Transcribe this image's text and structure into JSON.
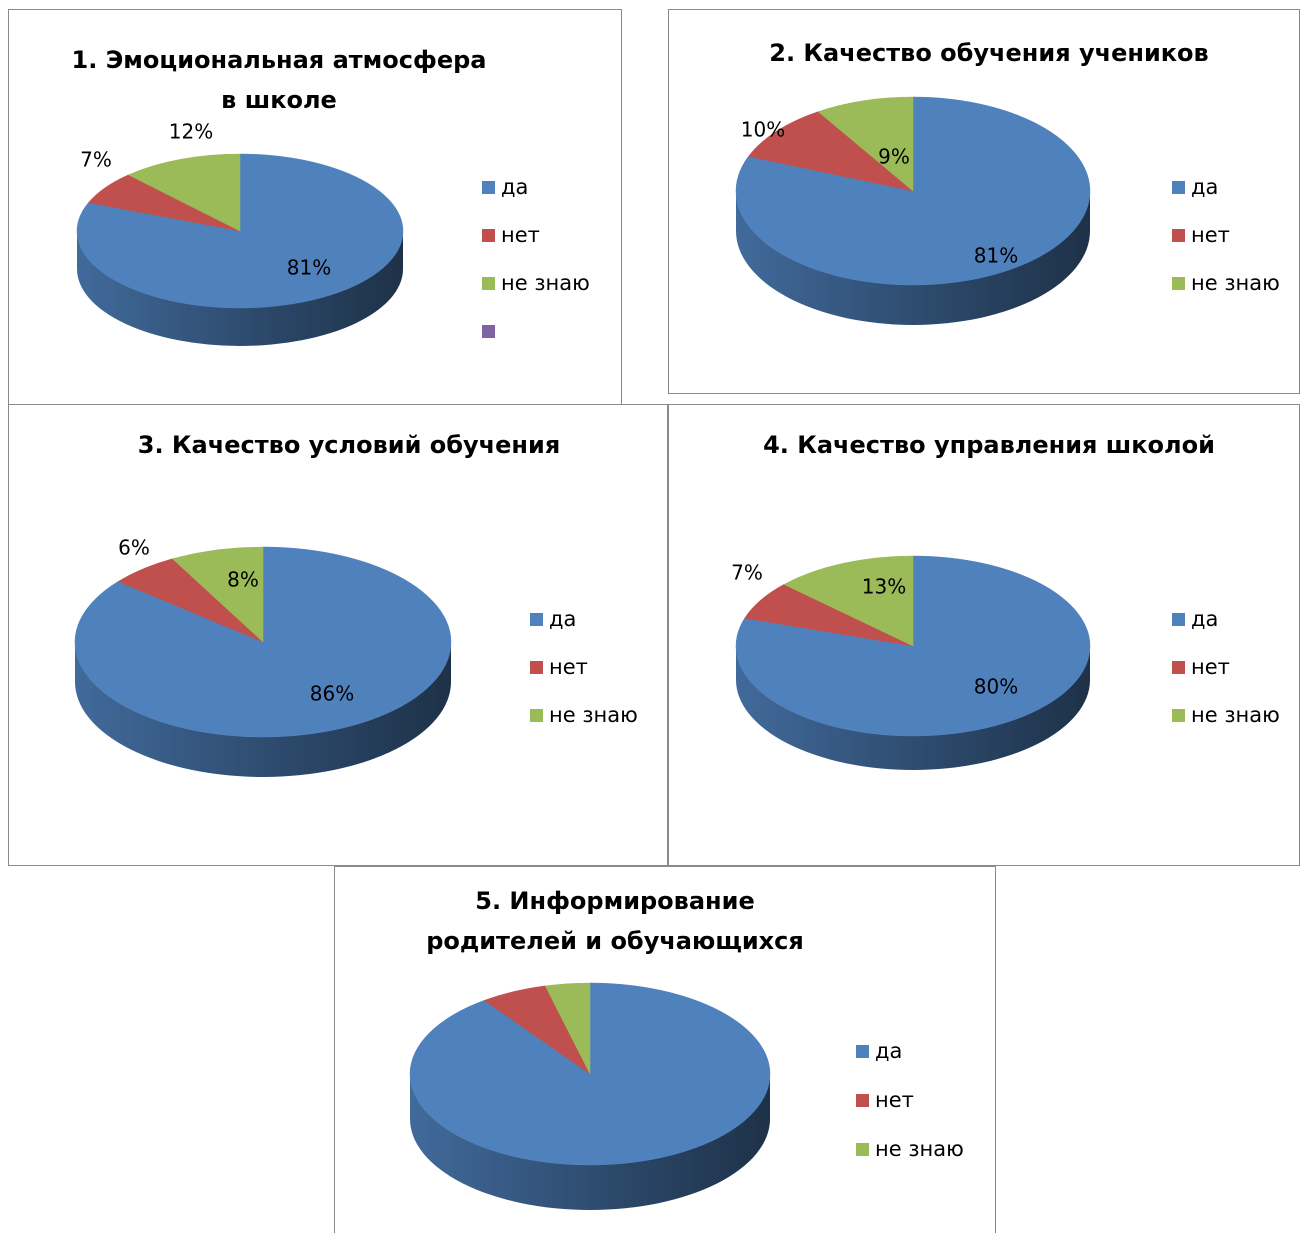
{
  "colors": {
    "yes": "#4F81BD",
    "no": "#C0504D",
    "dontknow": "#9BBB59",
    "extra": "#8064A2"
  },
  "chart_data": [
    {
      "type": "pie",
      "title": "1. Эмоциональная атмосфера в школе",
      "categories": [
        "да",
        "нет",
        "не знаю"
      ],
      "values": [
        81,
        7,
        12
      ],
      "data_labels": [
        "81%",
        "7%",
        "12%"
      ],
      "legend": [
        "да",
        "нет",
        "не знаю",
        ""
      ],
      "legend_position": "right"
    },
    {
      "type": "pie",
      "title": "2. Качество обучения учеников",
      "categories": [
        "да",
        "нет",
        "не знаю"
      ],
      "values": [
        81,
        10,
        9
      ],
      "data_labels": [
        "81%",
        "10%",
        "9%"
      ],
      "legend": [
        "да",
        "нет",
        "не знаю"
      ],
      "legend_position": "right"
    },
    {
      "type": "pie",
      "title": "3. Качество условий обучения",
      "categories": [
        "да",
        "нет",
        "не знаю"
      ],
      "values": [
        86,
        6,
        8
      ],
      "data_labels": [
        "86%",
        "6%",
        "8%"
      ],
      "legend": [
        "да",
        "нет",
        "не знаю"
      ],
      "legend_position": "right"
    },
    {
      "type": "pie",
      "title": "4. Качество управления школой",
      "categories": [
        "да",
        "нет",
        "не знаю"
      ],
      "values": [
        80,
        7,
        13
      ],
      "data_labels": [
        "80%",
        "7%",
        "13%"
      ],
      "legend": [
        "да",
        "нет",
        "не знаю"
      ],
      "legend_position": "right"
    },
    {
      "type": "pie",
      "title": "5. Информирование родителей и обучающихся",
      "categories": [
        "да",
        "нет",
        "не знаю"
      ],
      "values": [
        90,
        6,
        4
      ],
      "data_labels": [
        "",
        "",
        ""
      ],
      "legend": [
        "да",
        "нет",
        "не знаю"
      ],
      "legend_position": "right"
    }
  ]
}
